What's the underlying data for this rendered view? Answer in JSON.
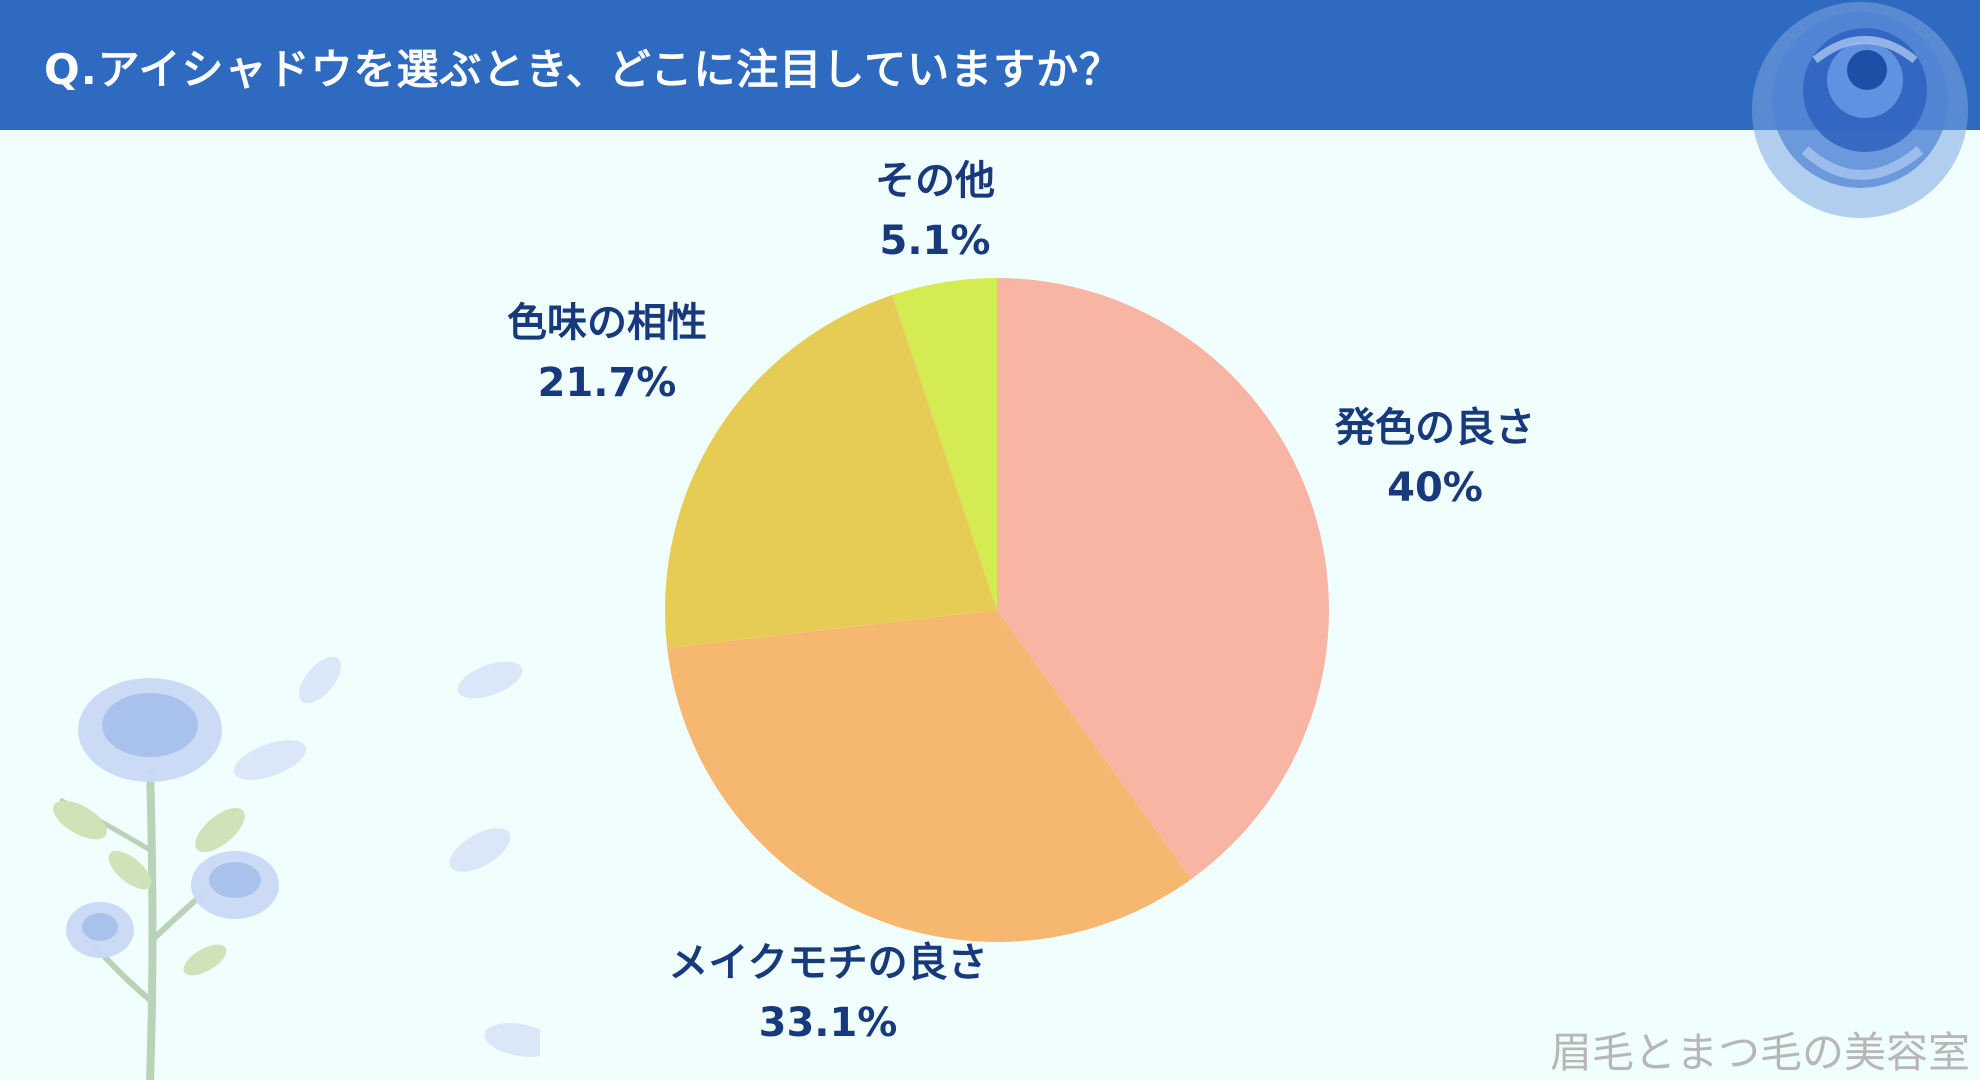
{
  "header": {
    "title": "Q.アイシャドウを選ぶとき、どこに注目していますか？"
  },
  "colors": {
    "header_bg": "#2e6bc0",
    "page_bg": "#f0fefe",
    "label_text": "#183a7c"
  },
  "chart_data": {
    "type": "pie",
    "title": "Q.アイシャドウを選ぶとき、どこに注目していますか？",
    "unit": "%",
    "start": "12 o'clock, clockwise",
    "slices": [
      {
        "label": "発色の良さ",
        "value": 40,
        "display": "40%",
        "color": "#f9b5a3"
      },
      {
        "label": "メイクモチの良さ",
        "value": 33.1,
        "display": "33.1%",
        "color": "#f6b870"
      },
      {
        "label": "色味の相性",
        "value": 21.7,
        "display": "21.7%",
        "color": "#e6cc55"
      },
      {
        "label": "その他",
        "value": 5.1,
        "display": "5.1%",
        "color": "#d4ec52"
      }
    ]
  },
  "watermark": "眉毛とまつ毛の美容室",
  "decorations": {
    "top_right": "blue-rose-icon",
    "bottom_left": "rose-branch-icon"
  }
}
